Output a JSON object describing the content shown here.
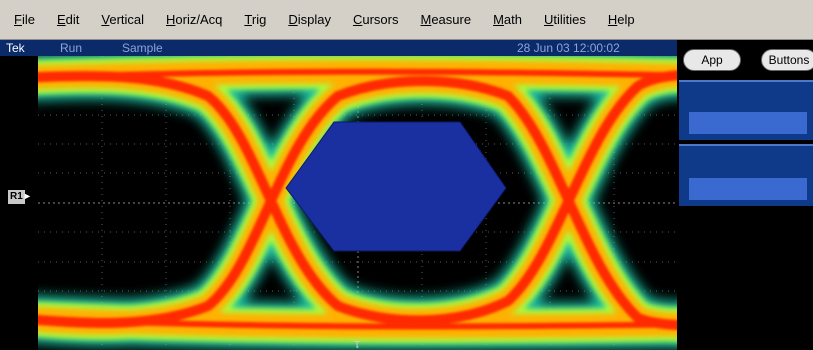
{
  "menubar": {
    "items": [
      "File",
      "Edit",
      "Vertical",
      "Horiz/Acq",
      "Trig",
      "Display",
      "Cursors",
      "Measure",
      "Math",
      "Utilities",
      "Help"
    ]
  },
  "status": {
    "brand": "Tek",
    "run_state": "Run",
    "acq_mode": "Sample",
    "timestamp": "28 Jun 03 12:00:02"
  },
  "screen": {
    "ref_marker": "R1"
  },
  "right_panel": {
    "app_button": "App",
    "buttons_button": "Buttons"
  },
  "colors": {
    "mask": "#1a2fa0",
    "trace_hot": "#ff2a00",
    "trace_mid": "#ffb000",
    "trace_cool": "#a8ff40",
    "trace_edge": "#20e0c0"
  }
}
